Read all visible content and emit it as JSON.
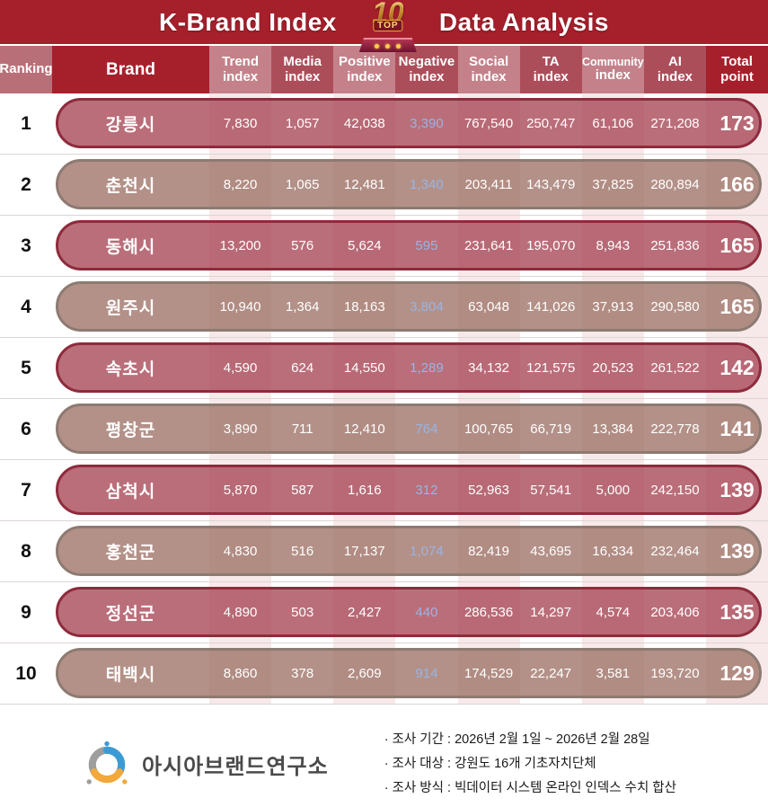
{
  "title": {
    "left": "K-Brand Index",
    "right": "Data Analysis",
    "badge_number": "10",
    "badge_label": "TOP"
  },
  "colors": {
    "banner": "#A6202C",
    "header_light": "#C4818A",
    "header_medium": "#AC4E5A",
    "row_rose_border": "#8E2B3C",
    "row_taupe_border": "#8D7A71",
    "negative_value": "#9AB4E4",
    "column_stripe": "#F7E9E9"
  },
  "table": {
    "columns": [
      {
        "key": "ranking",
        "label": "Ranking",
        "sub": "",
        "tone": "rank",
        "stripe": false
      },
      {
        "key": "brand",
        "label": "Brand",
        "sub": "",
        "tone": "dark",
        "stripe": false
      },
      {
        "key": "trend",
        "label": "Trend",
        "sub": "index",
        "tone": "light",
        "stripe": true
      },
      {
        "key": "media",
        "label": "Media",
        "sub": "index",
        "tone": "medium",
        "stripe": false
      },
      {
        "key": "positive",
        "label": "Positive",
        "sub": "index",
        "tone": "light",
        "stripe": true
      },
      {
        "key": "negative",
        "label": "Negative",
        "sub": "index",
        "tone": "medium",
        "stripe": false
      },
      {
        "key": "social",
        "label": "Social",
        "sub": "index",
        "tone": "light",
        "stripe": true
      },
      {
        "key": "ta",
        "label": "TA",
        "sub": "index",
        "tone": "medium",
        "stripe": false
      },
      {
        "key": "community",
        "label": "Community",
        "sub": "index",
        "tone": "light",
        "stripe": true
      },
      {
        "key": "ai",
        "label": "AI",
        "sub": "index",
        "tone": "medium",
        "stripe": false
      },
      {
        "key": "total",
        "label": "Total",
        "sub": "point",
        "tone": "dark",
        "stripe": true
      }
    ],
    "rows": [
      {
        "rank": "1",
        "brand": "강릉시",
        "trend": "7,830",
        "media": "1,057",
        "positive": "42,038",
        "negative": "3,390",
        "social": "767,540",
        "ta": "250,747",
        "community": "61,106",
        "ai": "271,208",
        "total": "173"
      },
      {
        "rank": "2",
        "brand": "춘천시",
        "trend": "8,220",
        "media": "1,065",
        "positive": "12,481",
        "negative": "1,340",
        "social": "203,411",
        "ta": "143,479",
        "community": "37,825",
        "ai": "280,894",
        "total": "166"
      },
      {
        "rank": "3",
        "brand": "동해시",
        "trend": "13,200",
        "media": "576",
        "positive": "5,624",
        "negative": "595",
        "social": "231,641",
        "ta": "195,070",
        "community": "8,943",
        "ai": "251,836",
        "total": "165"
      },
      {
        "rank": "4",
        "brand": "원주시",
        "trend": "10,940",
        "media": "1,364",
        "positive": "18,163",
        "negative": "3,804",
        "social": "63,048",
        "ta": "141,026",
        "community": "37,913",
        "ai": "290,580",
        "total": "165"
      },
      {
        "rank": "5",
        "brand": "속초시",
        "trend": "4,590",
        "media": "624",
        "positive": "14,550",
        "negative": "1,289",
        "social": "34,132",
        "ta": "121,575",
        "community": "20,523",
        "ai": "261,522",
        "total": "142"
      },
      {
        "rank": "6",
        "brand": "평창군",
        "trend": "3,890",
        "media": "711",
        "positive": "12,410",
        "negative": "764",
        "social": "100,765",
        "ta": "66,719",
        "community": "13,384",
        "ai": "222,778",
        "total": "141"
      },
      {
        "rank": "7",
        "brand": "삼척시",
        "trend": "5,870",
        "media": "587",
        "positive": "1,616",
        "negative": "312",
        "social": "52,963",
        "ta": "57,541",
        "community": "5,000",
        "ai": "242,150",
        "total": "139"
      },
      {
        "rank": "8",
        "brand": "홍천군",
        "trend": "4,830",
        "media": "516",
        "positive": "17,137",
        "negative": "1,074",
        "social": "82,419",
        "ta": "43,695",
        "community": "16,334",
        "ai": "232,464",
        "total": "139"
      },
      {
        "rank": "9",
        "brand": "정선군",
        "trend": "4,890",
        "media": "503",
        "positive": "2,427",
        "negative": "440",
        "social": "286,536",
        "ta": "14,297",
        "community": "4,574",
        "ai": "203,406",
        "total": "135"
      },
      {
        "rank": "10",
        "brand": "태백시",
        "trend": "8,860",
        "media": "378",
        "positive": "2,609",
        "negative": "914",
        "social": "174,529",
        "ta": "22,247",
        "community": "3,581",
        "ai": "193,720",
        "total": "129"
      }
    ]
  },
  "chart_data": {
    "type": "table",
    "title": "K-Brand Index TOP 10 Data Analysis",
    "columns": [
      "Ranking",
      "Brand",
      "Trend index",
      "Media index",
      "Positive index",
      "Negative index",
      "Social index",
      "TA index",
      "Community index",
      "AI index",
      "Total point"
    ],
    "rows": [
      [
        1,
        "강릉시",
        7830,
        1057,
        42038,
        3390,
        767540,
        250747,
        61106,
        271208,
        173
      ],
      [
        2,
        "춘천시",
        8220,
        1065,
        12481,
        1340,
        203411,
        143479,
        37825,
        280894,
        166
      ],
      [
        3,
        "동해시",
        13200,
        576,
        5624,
        595,
        231641,
        195070,
        8943,
        251836,
        165
      ],
      [
        4,
        "원주시",
        10940,
        1364,
        18163,
        3804,
        63048,
        141026,
        37913,
        290580,
        165
      ],
      [
        5,
        "속초시",
        4590,
        624,
        14550,
        1289,
        34132,
        121575,
        20523,
        261522,
        142
      ],
      [
        6,
        "평창군",
        3890,
        711,
        12410,
        764,
        100765,
        66719,
        13384,
        222778,
        141
      ],
      [
        7,
        "삼척시",
        5870,
        587,
        1616,
        312,
        52963,
        57541,
        5000,
        242150,
        139
      ],
      [
        8,
        "홍천군",
        4830,
        516,
        17137,
        1074,
        82419,
        43695,
        16334,
        232464,
        139
      ],
      [
        9,
        "정선군",
        4890,
        503,
        2427,
        440,
        286536,
        14297,
        4574,
        203406,
        135
      ],
      [
        10,
        "태백시",
        8860,
        378,
        2609,
        914,
        174529,
        22247,
        3581,
        193720,
        129
      ]
    ]
  },
  "footer": {
    "org": "아시아브랜드연구소",
    "notes": [
      "· 조사 기간 : 2026년 2월 1일 ~ 2026년 2월 28일",
      "· 조사 대상 : 강원도 16개 기초자치단체",
      "· 조사 방식 : 빅데이터 시스템 온라인 인덱스 수치 합산"
    ]
  }
}
